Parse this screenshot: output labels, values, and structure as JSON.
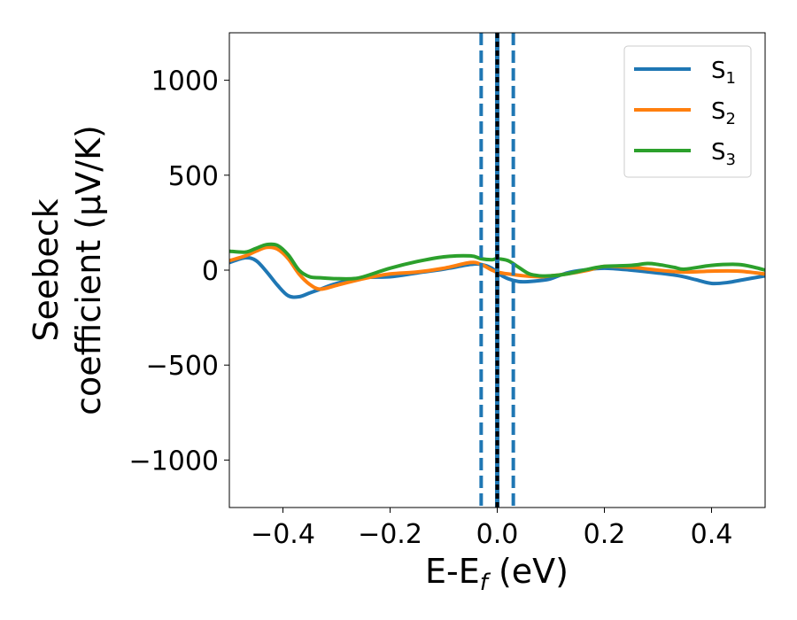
{
  "chart_data": {
    "type": "line",
    "xlabel": "E-E",
    "xlabel_sub": "f",
    "xlabel_unit": " (eV)",
    "ylabel_line1": "Seebeck",
    "ylabel_line2": "coefficient  (μV/K)",
    "xlim": [
      -0.5,
      0.5
    ],
    "ylim": [
      -1250,
      1250
    ],
    "xticks": [
      -0.4,
      -0.2,
      0.0,
      0.2,
      0.4
    ],
    "xtick_labels": [
      "−0.4",
      "−0.2",
      "0.0",
      "0.2",
      "0.4"
    ],
    "yticks": [
      -1000,
      -500,
      0,
      500,
      1000
    ],
    "ytick_labels": [
      "−1000",
      "−500",
      "0",
      "500",
      "1000"
    ],
    "grid": false,
    "legend_position": "top-right",
    "series": [
      {
        "name": "S",
        "name_sub": "1",
        "color": "#1f77b4",
        "x": [
          -0.5,
          -0.47,
          -0.45,
          -0.43,
          -0.41,
          -0.39,
          -0.37,
          -0.35,
          -0.33,
          -0.3,
          -0.25,
          -0.2,
          -0.15,
          -0.1,
          -0.05,
          -0.03,
          -0.01,
          0.0,
          0.02,
          0.04,
          0.06,
          0.08,
          0.1,
          0.13,
          0.16,
          0.2,
          0.25,
          0.3,
          0.34,
          0.37,
          0.4,
          0.43,
          0.46,
          0.5
        ],
        "y": [
          40,
          65,
          50,
          -10,
          -80,
          -135,
          -140,
          -120,
          -100,
          -70,
          -40,
          -35,
          -15,
          5,
          30,
          30,
          10,
          -15,
          -45,
          -60,
          -60,
          -55,
          -45,
          -15,
          0,
          10,
          0,
          -15,
          -30,
          -50,
          -70,
          -65,
          -50,
          -30
        ]
      },
      {
        "name": "S",
        "name_sub": "2",
        "color": "#ff7f0e",
        "x": [
          -0.5,
          -0.47,
          -0.45,
          -0.43,
          -0.41,
          -0.39,
          -0.37,
          -0.35,
          -0.33,
          -0.3,
          -0.25,
          -0.2,
          -0.15,
          -0.1,
          -0.05,
          -0.03,
          -0.01,
          0.0,
          0.02,
          0.05,
          0.08,
          0.1,
          0.13,
          0.17,
          0.2,
          0.25,
          0.3,
          0.35,
          0.4,
          0.45,
          0.5
        ],
        "y": [
          50,
          75,
          100,
          120,
          110,
          60,
          -20,
          -75,
          -100,
          -80,
          -45,
          -20,
          -10,
          10,
          40,
          30,
          0,
          -10,
          -20,
          -30,
          -35,
          -30,
          -20,
          0,
          20,
          15,
          0,
          -10,
          -5,
          -5,
          -20
        ]
      },
      {
        "name": "S",
        "name_sub": "3",
        "color": "#2ca02c",
        "x": [
          -0.5,
          -0.47,
          -0.45,
          -0.43,
          -0.41,
          -0.39,
          -0.37,
          -0.35,
          -0.33,
          -0.3,
          -0.27,
          -0.25,
          -0.2,
          -0.15,
          -0.1,
          -0.05,
          -0.03,
          -0.01,
          0.0,
          0.02,
          0.04,
          0.06,
          0.08,
          0.1,
          0.13,
          0.17,
          0.2,
          0.25,
          0.28,
          0.3,
          0.33,
          0.35,
          0.4,
          0.45,
          0.48,
          0.5
        ],
        "y": [
          100,
          95,
          115,
          135,
          130,
          80,
          0,
          -35,
          -40,
          -45,
          -45,
          -35,
          10,
          45,
          70,
          75,
          60,
          55,
          60,
          50,
          15,
          -20,
          -30,
          -30,
          -20,
          5,
          20,
          25,
          35,
          30,
          15,
          5,
          25,
          30,
          15,
          0
        ]
      }
    ],
    "vlines": [
      {
        "x": -0.03,
        "style": "dashed",
        "color": "#1f77b4"
      },
      {
        "x": 0.0,
        "style": "solid",
        "color": "#1f77b4"
      },
      {
        "x": 0.0,
        "style": "dashed",
        "color": "#000000"
      },
      {
        "x": 0.03,
        "style": "dashed",
        "color": "#1f77b4"
      }
    ]
  }
}
